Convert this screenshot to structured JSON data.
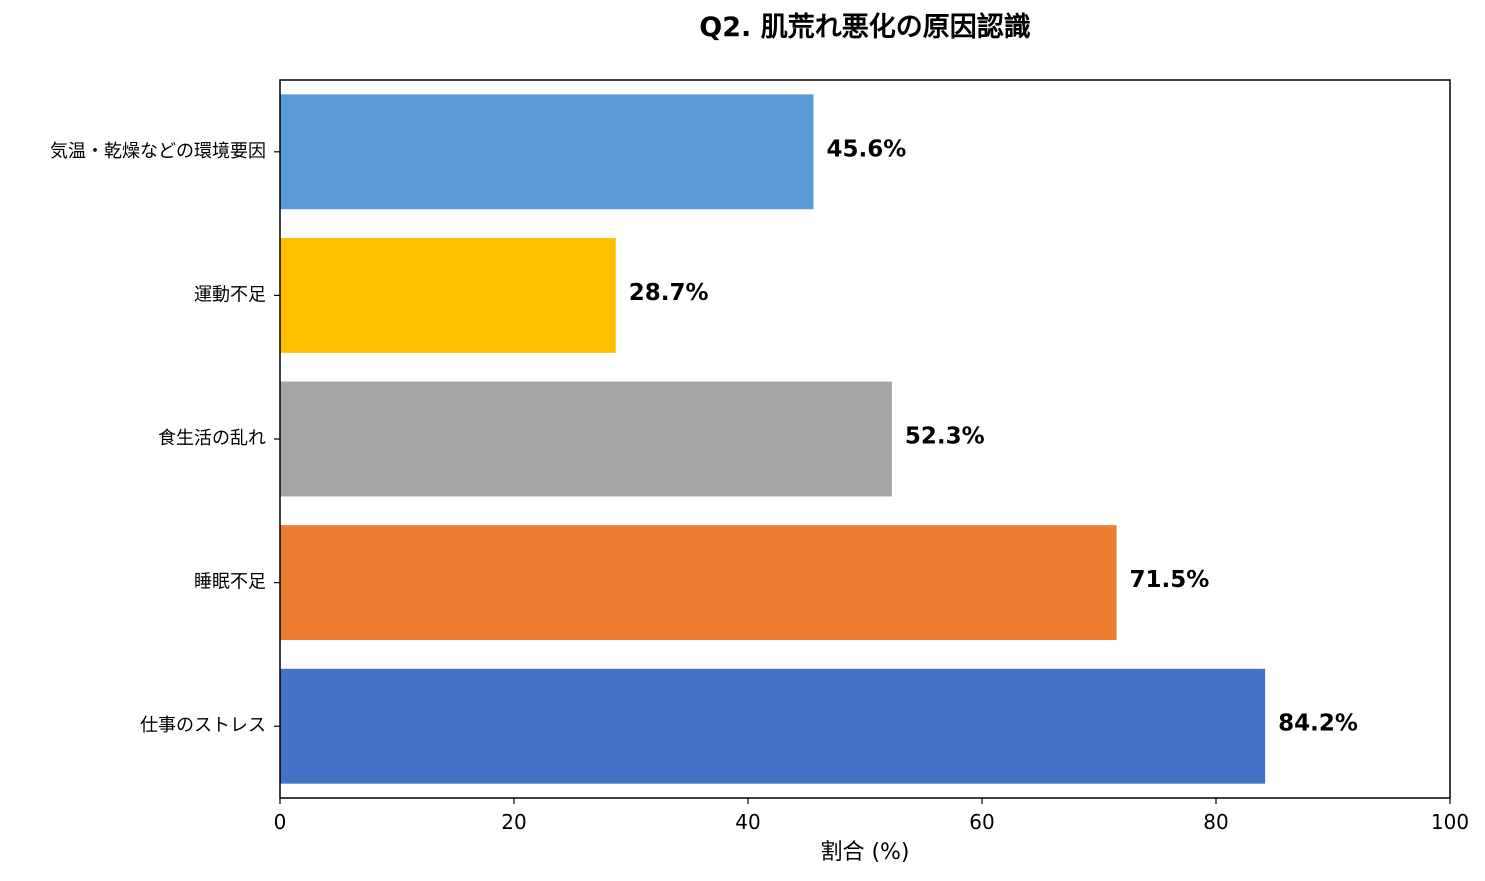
{
  "chart_data": {
    "type": "bar",
    "orientation": "horizontal",
    "title": "Q2. 肌荒れ悪化の原因認識",
    "xlabel": "割合 (%)",
    "ylabel": "",
    "xlim": [
      0,
      100
    ],
    "xticks": [
      0,
      20,
      40,
      60,
      80,
      100
    ],
    "grid": false,
    "categories": [
      "仕事のストレス",
      "睡眠不足",
      "食生活の乱れ",
      "運動不足",
      "気温・乾燥などの環境要因"
    ],
    "values": [
      84.2,
      71.5,
      52.3,
      28.7,
      45.6
    ],
    "value_labels": [
      "84.2%",
      "71.5%",
      "52.3%",
      "28.7%",
      "45.6%"
    ],
    "colors": [
      "#4472c4",
      "#ed7d31",
      "#a5a5a5",
      "#ffc000",
      "#5b9bd5"
    ]
  }
}
